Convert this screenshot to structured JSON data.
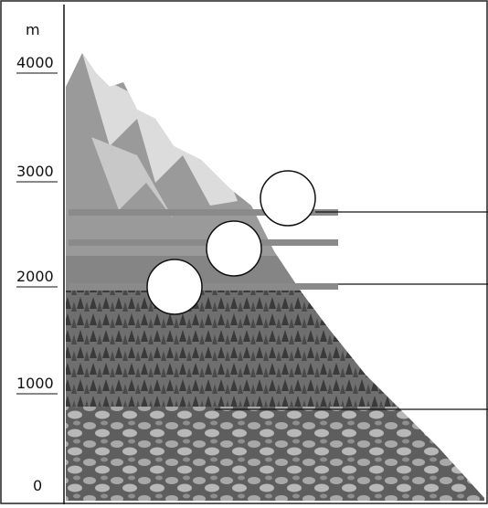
{
  "axis": {
    "unit": "m",
    "ticks": [
      4000,
      3000,
      2000,
      1000,
      0
    ]
  }
}
